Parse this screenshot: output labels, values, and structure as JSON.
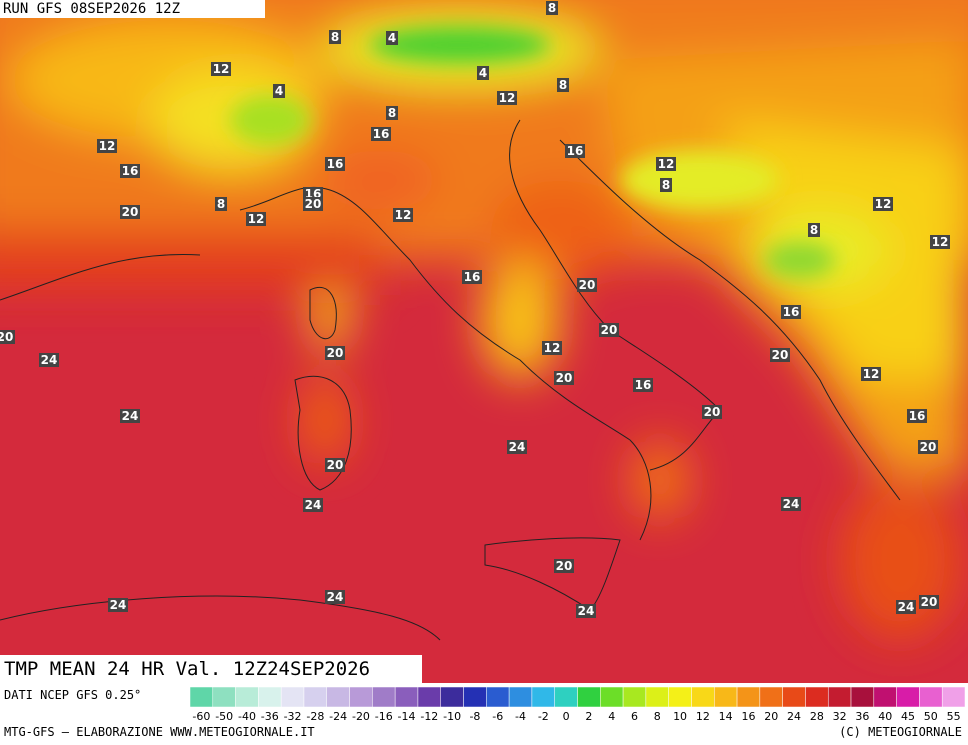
{
  "header": {
    "run": "RUN GFS 08SEP2026 12Z"
  },
  "map": {
    "title": "TMP MEAN 24 HR Val. 12Z24SEP2026",
    "contour_labels": [
      8,
      8,
      4,
      12,
      4,
      8,
      4,
      12,
      8,
      16,
      12,
      16,
      16,
      16,
      12,
      8,
      16,
      20,
      8,
      20,
      12,
      12,
      12,
      8,
      12,
      16,
      20,
      20,
      16,
      20,
      20,
      24,
      12,
      20,
      20,
      16,
      12,
      24,
      20,
      16,
      24,
      20,
      20,
      24,
      24,
      20,
      24,
      24,
      24,
      24,
      20
    ]
  },
  "colorbar": {
    "labels": [
      "-60",
      "-50",
      "-40",
      "-36",
      "-32",
      "-28",
      "-24",
      "-20",
      "-16",
      "-14",
      "-12",
      "-10",
      "-8",
      "-6",
      "-4",
      "-2",
      "0",
      "2",
      "4",
      "6",
      "8",
      "10",
      "12",
      "14",
      "16",
      "20",
      "24",
      "28",
      "32",
      "36",
      "40",
      "45",
      "50",
      "55"
    ],
    "colors": [
      "#5fd6a8",
      "#8ee0c0",
      "#b8ecd8",
      "#d8f2ec",
      "#e4e4f4",
      "#d6d0ee",
      "#c8b8e4",
      "#b89ad8",
      "#a07cc8",
      "#8a5ebc",
      "#6a3caa",
      "#3c2c9c",
      "#2430b4",
      "#2a5cd0",
      "#2e8ee0",
      "#30b8e8",
      "#2ed0c0",
      "#30d040",
      "#6cde28",
      "#a8e820",
      "#dcf018",
      "#f4f018",
      "#f8d818",
      "#f8b818",
      "#f49418",
      "#f07018",
      "#e84a18",
      "#dc2c20",
      "#c41c30",
      "#a8103c",
      "#c01070",
      "#d81ca8",
      "#e860d0",
      "#f0a0e8"
    ]
  },
  "footer": {
    "source": "DATI NCEP GFS 0.25°",
    "left": "MTG-GFS — ELABORAZIONE WWW.METEOGIORNALE.IT",
    "right": "(C) METEOGIORNALE"
  }
}
